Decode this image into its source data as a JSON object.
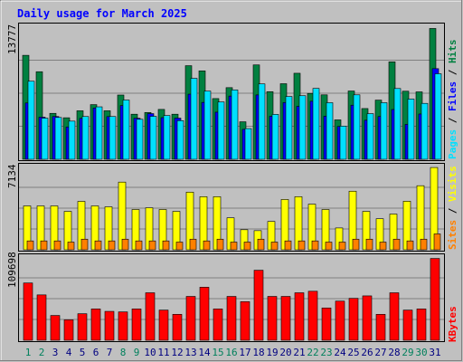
{
  "chart_data": {
    "type": "bar",
    "title": "Daily usage for March 2025",
    "categories": [
      "1",
      "2",
      "3",
      "4",
      "5",
      "6",
      "7",
      "8",
      "9",
      "10",
      "11",
      "12",
      "13",
      "14",
      "15",
      "16",
      "17",
      "18",
      "19",
      "20",
      "21",
      "22",
      "23",
      "24",
      "25",
      "26",
      "27",
      "28",
      "29",
      "30",
      "31"
    ],
    "weekend_days": [
      "1",
      "2",
      "8",
      "9",
      "15",
      "16",
      "22",
      "23",
      "29",
      "30"
    ],
    "panels": {
      "hits_files_pages": {
        "axis_max_label": "13777",
        "ylim": [
          0,
          13777
        ],
        "grid": true,
        "right_label": {
          "pages": "Pages",
          "sep1": " / ",
          "files": "Files",
          "sep2": " / ",
          "hits": "Hits"
        },
        "series": [
          {
            "name": "Hits",
            "color": "#008040",
            "values": [
              10840,
              9130,
              4790,
              4330,
              5060,
              5700,
              5060,
              6700,
              4700,
              4880,
              5200,
              4700,
              9760,
              9220,
              6330,
              7470,
              3910,
              9840,
              7050,
              7880,
              8970,
              6870,
              6720,
              4110,
              7120,
              5290,
              6170,
              10160,
              7100,
              7030,
              13640
            ]
          },
          {
            "name": "Files",
            "color": "#0000ff",
            "values": [
              5870,
              4390,
              4460,
              3370,
              4260,
              5340,
              4450,
              5600,
              4280,
              4760,
              4340,
              4290,
              6790,
              5930,
              4910,
              6590,
              3120,
              6710,
              4480,
              5910,
              5520,
              6050,
              4490,
              3420,
              5640,
              4070,
              4460,
              5190,
              3640,
              4720,
              9450
            ]
          },
          {
            "name": "Pages",
            "color": "#00e0ff",
            "values": [
              8140,
              4290,
              4360,
              3980,
              4460,
              5470,
              4460,
              6180,
              4170,
              4480,
              4560,
              4030,
              8440,
              7110,
              5980,
              7230,
              3200,
              7860,
              4680,
              6550,
              6630,
              7390,
              5900,
              3460,
              6720,
              4760,
              5900,
              7380,
              6280,
              5830,
              8920
            ]
          }
        ]
      },
      "visits_sites": {
        "axis_max_label": "7134",
        "ylim": [
          0,
          7134
        ],
        "grid": true,
        "right_label": {
          "sites": "Sites",
          "sep": " / ",
          "visits": "Visits"
        },
        "series": [
          {
            "name": "Visits",
            "color": "#ffff00",
            "values": [
              3760,
              3760,
              3760,
              3290,
              4150,
              3760,
              3680,
              5800,
              3450,
              3600,
              3450,
              3290,
              4940,
              4550,
              4550,
              2740,
              1720,
              1640,
              2430,
              4310,
              4550,
              3910,
              3450,
              1870,
              5020,
              3290,
              2660,
              3060,
              4160,
              5490,
              7050
            ]
          },
          {
            "name": "Sites",
            "color": "#ff8000",
            "values": [
              760,
              760,
              760,
              660,
              910,
              760,
              760,
              910,
              760,
              760,
              760,
              660,
              910,
              760,
              910,
              660,
              660,
              910,
              660,
              760,
              760,
              760,
              660,
              660,
              910,
              910,
              660,
              910,
              760,
              910,
              1360
            ]
          }
        ]
      },
      "kbytes": {
        "axis_max_label": "109698",
        "ylim": [
          0,
          109698
        ],
        "grid": true,
        "right_label": {
          "kbytes": "KBytes"
        },
        "series": [
          {
            "name": "KBytes",
            "color": "#ff0000",
            "values": [
              75500,
              59800,
              32700,
              27000,
              35000,
              41300,
              38100,
              37400,
              41300,
              62600,
              39800,
              34200,
              57800,
              69900,
              41300,
              57800,
              50900,
              92300,
              57800,
              57800,
              62600,
              64600,
              42600,
              51600,
              55300,
              58500,
              34200,
              62600,
              39800,
              41300,
              107800
            ]
          }
        ]
      }
    }
  },
  "colors": {
    "title": "#0000ff",
    "weekday_label": "#000080",
    "weekend_label": "#00805c",
    "panel_bg": "#c0c0c0",
    "grid": "#808080"
  }
}
